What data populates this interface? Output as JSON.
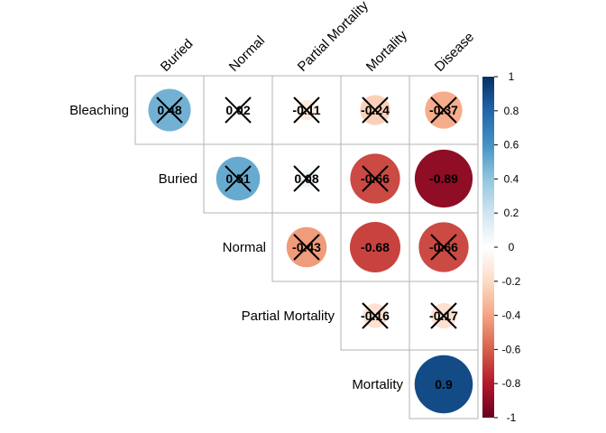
{
  "chart_data": {
    "type": "correlation-matrix",
    "layout": "upper-triangle",
    "columns": [
      "Buried",
      "Normal",
      "Partial Mortality",
      "Mortality",
      "Disease"
    ],
    "rows": [
      "Bleaching",
      "Buried",
      "Normal",
      "Partial Mortality",
      "Mortality"
    ],
    "cells": [
      {
        "row": "Bleaching",
        "col": "Buried",
        "value": 0.48,
        "label": "0.48",
        "crossed": true
      },
      {
        "row": "Bleaching",
        "col": "Normal",
        "value": 0.02,
        "label": "0.02",
        "crossed": true
      },
      {
        "row": "Bleaching",
        "col": "Partial Mortality",
        "value": -0.11,
        "label": "-0.11",
        "crossed": true
      },
      {
        "row": "Bleaching",
        "col": "Mortality",
        "value": -0.24,
        "label": "-0.24",
        "crossed": true
      },
      {
        "row": "Bleaching",
        "col": "Disease",
        "value": -0.37,
        "label": "-0.37",
        "crossed": true
      },
      {
        "row": "Buried",
        "col": "Normal",
        "value": 0.51,
        "label": "0.51",
        "crossed": true
      },
      {
        "row": "Buried",
        "col": "Partial Mortality",
        "value": 0.08,
        "label": "0.08",
        "crossed": true
      },
      {
        "row": "Buried",
        "col": "Mortality",
        "value": -0.66,
        "label": "-0.66",
        "crossed": true
      },
      {
        "row": "Buried",
        "col": "Disease",
        "value": -0.89,
        "label": "-0.89",
        "crossed": false
      },
      {
        "row": "Normal",
        "col": "Partial Mortality",
        "value": -0.43,
        "label": "-0.43",
        "crossed": true
      },
      {
        "row": "Normal",
        "col": "Mortality",
        "value": -0.68,
        "label": "-0.68",
        "crossed": false
      },
      {
        "row": "Normal",
        "col": "Disease",
        "value": -0.66,
        "label": "-0.66",
        "crossed": true
      },
      {
        "row": "Partial Mortality",
        "col": "Mortality",
        "value": -0.16,
        "label": "-0.16",
        "crossed": true
      },
      {
        "row": "Partial Mortality",
        "col": "Disease",
        "value": -0.17,
        "label": "-0.17",
        "crossed": true
      },
      {
        "row": "Mortality",
        "col": "Disease",
        "value": 0.9,
        "label": "0.9",
        "crossed": false
      }
    ],
    "colorbar": {
      "range": [
        -1,
        1
      ],
      "ticks": [
        "1",
        "0.8",
        "0.6",
        "0.4",
        "0.2",
        "0",
        "-0.2",
        "-0.4",
        "-0.6",
        "-0.8",
        "-1"
      ]
    },
    "palette": {
      "neg_strong": "#67001F",
      "neg_mid": "#D6604D",
      "neg_light": "#FDDBC7",
      "zero": "#FFFFFF",
      "pos_light": "#D1E5F0",
      "pos_mid": "#4393C3",
      "pos_strong": "#053061"
    }
  }
}
